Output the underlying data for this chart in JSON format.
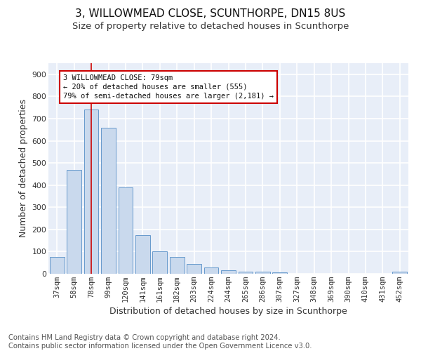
{
  "title1": "3, WILLOWMEAD CLOSE, SCUNTHORPE, DN15 8US",
  "title2": "Size of property relative to detached houses in Scunthorpe",
  "xlabel": "Distribution of detached houses by size in Scunthorpe",
  "ylabel": "Number of detached properties",
  "footer1": "Contains HM Land Registry data © Crown copyright and database right 2024.",
  "footer2": "Contains public sector information licensed under the Open Government Licence v3.0.",
  "categories": [
    "37sqm",
    "58sqm",
    "78sqm",
    "99sqm",
    "120sqm",
    "141sqm",
    "161sqm",
    "182sqm",
    "203sqm",
    "224sqm",
    "244sqm",
    "265sqm",
    "286sqm",
    "307sqm",
    "327sqm",
    "348sqm",
    "369sqm",
    "390sqm",
    "410sqm",
    "431sqm",
    "452sqm"
  ],
  "values": [
    75,
    470,
    740,
    660,
    390,
    175,
    100,
    75,
    45,
    30,
    15,
    10,
    10,
    5,
    0,
    0,
    0,
    0,
    0,
    0,
    8
  ],
  "bar_color": "#c9d9ed",
  "bar_edge_color": "#6699cc",
  "highlight_bar_index": 2,
  "vline_color": "#cc0000",
  "annotation_text": "3 WILLOWMEAD CLOSE: 79sqm\n← 20% of detached houses are smaller (555)\n79% of semi-detached houses are larger (2,181) →",
  "annotation_box_color": "white",
  "annotation_box_edge": "#cc0000",
  "ylim": [
    0,
    950
  ],
  "yticks": [
    0,
    100,
    200,
    300,
    400,
    500,
    600,
    700,
    800,
    900
  ],
  "background_color": "#ffffff",
  "plot_bg_color": "#e8eef8",
  "grid_color": "#ffffff",
  "title1_fontsize": 11,
  "title2_fontsize": 9.5,
  "axis_label_fontsize": 9,
  "tick_fontsize": 7.5,
  "footer_fontsize": 7.2
}
